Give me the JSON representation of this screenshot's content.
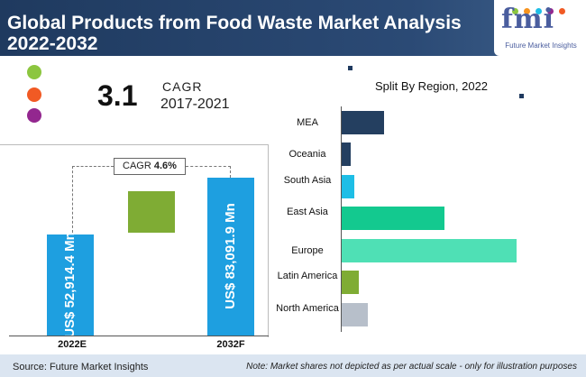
{
  "header": {
    "title_line1": "Global Products from Food Waste Market Analysis",
    "title_line2": "2022-2032"
  },
  "logo": {
    "mark": "fmi",
    "subtitle": "Future Market Insights"
  },
  "cagr_summary": {
    "value": "3.1",
    "label": "CAGR",
    "period": "2017-2021"
  },
  "colors": {
    "header_bg": "#1f3a5f",
    "bar_blue": "#1e9fe0",
    "bar_green": "#7fac34",
    "dot_green": "#8cc63f",
    "dot_orange": "#f15a24",
    "dot_purple": "#93278f"
  },
  "chart_data": [
    {
      "type": "bar",
      "categories": [
        "2022E",
        "2032F"
      ],
      "values": [
        52914.4,
        83091.9
      ],
      "value_labels": [
        "US$ 52,914.4 Mn",
        "US$ 83,091.9 Mn"
      ],
      "cagr_label": "CAGR",
      "cagr_value": "4.6%",
      "ylim": [
        0,
        90000
      ]
    },
    {
      "type": "bar",
      "orientation": "horizontal",
      "title": "Split By Region, 2022",
      "categories": [
        "MEA",
        "Oceania",
        "South Asia",
        "East Asia",
        "Europe",
        "Latin America",
        "North America"
      ],
      "values": [
        24,
        5,
        7,
        59,
        100,
        10,
        15
      ],
      "colors": [
        "#243f60",
        "#243f60",
        "#1ebee6",
        "#13c98f",
        "#4fe0b5",
        "#7fac34",
        "#b7bfca"
      ],
      "xlim": [
        0,
        100
      ]
    }
  ],
  "footer": {
    "source": "Source: Future Market Insights",
    "note": "Note: Market shares not depicted as per actual scale - only for illustration purposes"
  }
}
